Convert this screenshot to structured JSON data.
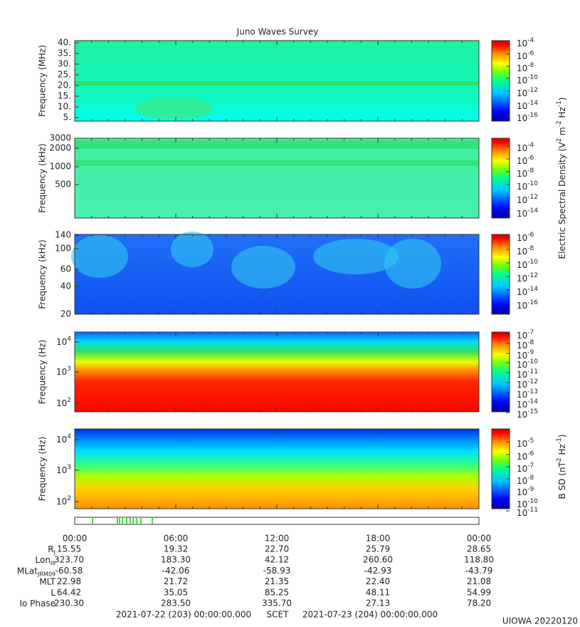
{
  "title": "Juno Waves Survey",
  "panels": [
    {
      "ylabel": "Frequency (MHz)",
      "yticks": [
        "40.",
        "35.",
        "30.",
        "25.",
        "20.",
        "15.",
        "10.",
        "5."
      ],
      "colorbar_ticks": [
        {
          "base": "10",
          "exp": "-4"
        },
        {
          "base": "10",
          "exp": "-6"
        },
        {
          "base": "10",
          "exp": "-8"
        },
        {
          "base": "10",
          "exp": "-10"
        },
        {
          "base": "10",
          "exp": "-12"
        },
        {
          "base": "10",
          "exp": "-14"
        },
        {
          "base": "10",
          "exp": "-16"
        }
      ]
    },
    {
      "ylabel": "Frequency (kHz)",
      "yticks": [
        "3000",
        "2000",
        "1000",
        "500"
      ],
      "colorbar_ticks": [
        {
          "base": "10",
          "exp": "-4"
        },
        {
          "base": "10",
          "exp": "-6"
        },
        {
          "base": "10",
          "exp": "-8"
        },
        {
          "base": "10",
          "exp": "-10"
        },
        {
          "base": "10",
          "exp": "-12"
        },
        {
          "base": "10",
          "exp": "-14"
        }
      ]
    },
    {
      "ylabel": "Frequency (kHz)",
      "yticks": [
        "140",
        "100",
        "60",
        "40",
        "20"
      ],
      "colorbar_ticks": [
        {
          "base": "10",
          "exp": "-6"
        },
        {
          "base": "10",
          "exp": "-8"
        },
        {
          "base": "10",
          "exp": "-10"
        },
        {
          "base": "10",
          "exp": "-12"
        },
        {
          "base": "10",
          "exp": "-14"
        },
        {
          "base": "10",
          "exp": "-16"
        }
      ]
    },
    {
      "ylabel": "Frequency (Hz)",
      "yticks": [
        {
          "base": "10",
          "exp": "4"
        },
        {
          "base": "10",
          "exp": "3"
        },
        {
          "base": "10",
          "exp": "2"
        }
      ],
      "colorbar_ticks": [
        {
          "base": "10",
          "exp": "-7"
        },
        {
          "base": "10",
          "exp": "-8"
        },
        {
          "base": "10",
          "exp": "-9"
        },
        {
          "base": "10",
          "exp": "-10"
        },
        {
          "base": "10",
          "exp": "-11"
        },
        {
          "base": "10",
          "exp": "-12"
        },
        {
          "base": "10",
          "exp": "-13"
        },
        {
          "base": "10",
          "exp": "-14"
        },
        {
          "base": "10",
          "exp": "-15"
        }
      ]
    },
    {
      "ylabel": "Frequency (Hz)",
      "yticks": [
        {
          "base": "10",
          "exp": "4"
        },
        {
          "base": "10",
          "exp": "3"
        },
        {
          "base": "10",
          "exp": "2"
        }
      ],
      "colorbar_ticks": [
        {
          "base": "10",
          "exp": "-5"
        },
        {
          "base": "10",
          "exp": "-6"
        },
        {
          "base": "10",
          "exp": "-7"
        },
        {
          "base": "10",
          "exp": "-8"
        },
        {
          "base": "10",
          "exp": "-9"
        },
        {
          "base": "10",
          "exp": "-10"
        },
        {
          "base": "10",
          "exp": "-11"
        }
      ]
    }
  ],
  "colorbar_labels": [
    [
      {
        "text": "Electric Spectral Density (V"
      },
      {
        "sup": "2"
      },
      {
        "text": " m"
      },
      {
        "sup": "-2"
      },
      {
        "text": " Hz"
      },
      {
        "sup": "-1"
      },
      {
        "text": ")"
      }
    ],
    [
      {
        "text": "B SD (nT"
      },
      {
        "sup": "2"
      },
      {
        "text": " Hz"
      },
      {
        "sup": "-1"
      },
      {
        "text": ")"
      }
    ]
  ],
  "time_labels": [
    "00:00",
    "06:00",
    "12:00",
    "18:00",
    "00:00"
  ],
  "ephemeris": [
    {
      "label": {
        "main": "R",
        "sub": "J"
      },
      "values": [
        "15.55",
        "19.32",
        "22.70",
        "25.79",
        "28.65"
      ]
    },
    {
      "label": {
        "main": "Lon",
        "sub": "III"
      },
      "values": [
        "323.70",
        "183.30",
        "42.12",
        "260.60",
        "118.80"
      ]
    },
    {
      "label": {
        "main": "MLat",
        "sub": "JRM09"
      },
      "values": [
        "-60.58",
        "-42.06",
        "-58.93",
        "-42.93",
        "-43.79"
      ]
    },
    {
      "label": {
        "main": "MLT",
        "sub": ""
      },
      "values": [
        "22.98",
        "21.72",
        "21.35",
        "22.40",
        "21.08"
      ]
    },
    {
      "label": {
        "main": "L",
        "sub": ""
      },
      "values": [
        "64.42",
        "35.05",
        "85.25",
        "48.11",
        "54.99"
      ]
    },
    {
      "label": {
        "main": "Io Phase",
        "sub": ""
      },
      "values": [
        "230.30",
        "283.50",
        "335.70",
        "27.13",
        "78.20"
      ]
    }
  ],
  "footer": {
    "start": "2021-07-22 (203) 00:00:00.000",
    "center": "SCET",
    "end": "2021-07-23 (204) 00:00:00.000",
    "stamp": "UIOWA 20220120"
  }
}
